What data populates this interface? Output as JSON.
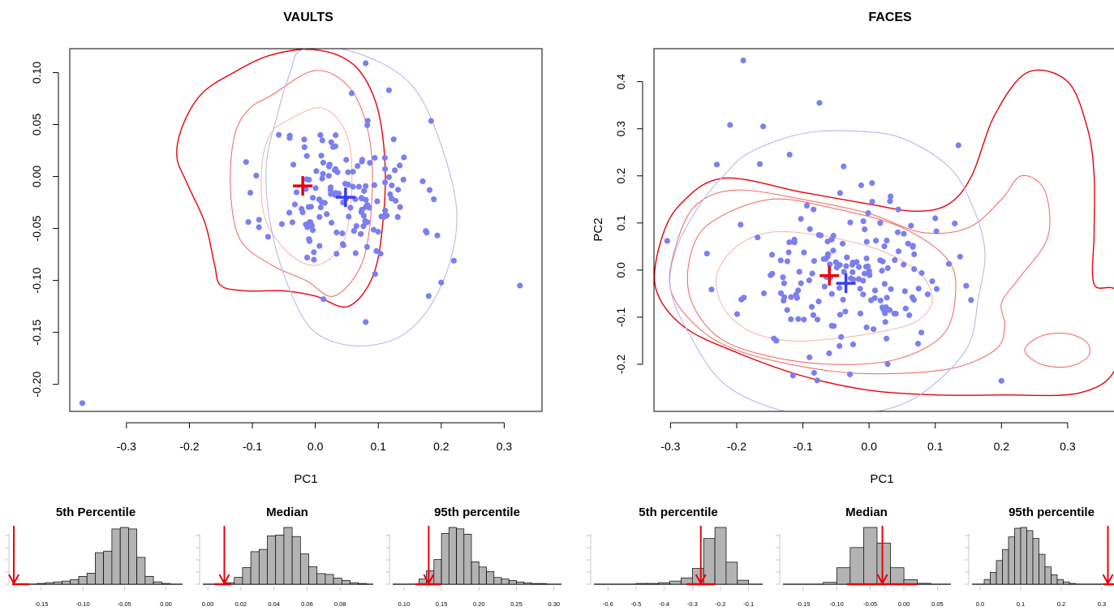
{
  "colors": {
    "points": "#7b7ff0",
    "red": "#e8000b",
    "red_light": "#f0726c",
    "red_faint": "#f7b6b0",
    "lilac": "#b8b8ee",
    "blue_cross": "#3b3bf0",
    "hist_fill": "#b3b3b3"
  },
  "chart_data": [
    {
      "type": "scatter",
      "title": "VAULTS",
      "xlabel": "PC1",
      "ylabel": "",
      "xlim": [
        -0.39,
        0.36
      ],
      "ylim": [
        -0.226,
        0.123
      ],
      "xticks": [
        "-0.3",
        "-0.2",
        "-0.1",
        "0.0",
        "0.1",
        "0.2",
        "0.3"
      ],
      "xtick_values": [
        -0.3,
        -0.2,
        -0.1,
        0.0,
        0.1,
        0.2,
        0.3
      ],
      "yticks": [
        "-0.20",
        "-0.15",
        "-0.10",
        "-0.05",
        "0.00",
        "0.05",
        "0.10"
      ],
      "ytick_values": [
        -0.2,
        -0.15,
        -0.1,
        -0.05,
        0.0,
        0.05,
        0.1
      ],
      "grid": false,
      "legend": "none",
      "outliers": [
        [
          -0.37,
          -0.218
        ],
        [
          0.325,
          -0.105
        ],
        [
          0.08,
          -0.14
        ],
        [
          0.08,
          0.109
        ],
        [
          0.22,
          -0.081
        ],
        [
          0.2,
          -0.102
        ],
        [
          0.18,
          -0.115
        ],
        [
          0.117,
          0.083
        ],
        [
          0.013,
          -0.118
        ]
      ],
      "cluster": {
        "center": [
          0.045,
          -0.018
        ],
        "spread": [
          0.06,
          0.036
        ],
        "n": 150,
        "seed": 11,
        "xrange": [
          -0.11,
          0.24
        ],
        "yrange": [
          -0.13,
          0.1
        ]
      },
      "red_cross": [
        -0.02,
        -0.009
      ],
      "blue_cross": [
        0.048,
        -0.02
      ],
      "contours": [
        {
          "color": "red",
          "points": [
            [
              -0.13,
              0.1
            ],
            [
              -0.07,
              0.117
            ],
            [
              0.0,
              0.122
            ],
            [
              0.06,
              0.108
            ],
            [
              0.095,
              0.073
            ],
            [
              0.11,
              0.02
            ],
            [
              0.108,
              -0.04
            ],
            [
              0.092,
              -0.095
            ],
            [
              0.052,
              -0.125
            ],
            [
              0.0,
              -0.115
            ],
            [
              -0.05,
              -0.11
            ],
            [
              -0.11,
              -0.11
            ],
            [
              -0.15,
              -0.105
            ],
            [
              -0.16,
              -0.085
            ],
            [
              -0.175,
              -0.045
            ],
            [
              -0.205,
              -0.005
            ],
            [
              -0.22,
              0.02
            ],
            [
              -0.21,
              0.05
            ],
            [
              -0.18,
              0.08
            ]
          ]
        },
        {
          "color": "red_light",
          "points": [
            [
              -0.07,
              0.078
            ],
            [
              0.0,
              0.102
            ],
            [
              0.055,
              0.085
            ],
            [
              0.085,
              0.04
            ],
            [
              0.09,
              -0.02
            ],
            [
              0.075,
              -0.082
            ],
            [
              0.03,
              -0.115
            ],
            [
              -0.015,
              -0.1
            ],
            [
              -0.07,
              -0.085
            ],
            [
              -0.12,
              -0.06
            ],
            [
              -0.135,
              -0.01
            ],
            [
              -0.128,
              0.04
            ],
            [
              -0.105,
              0.065
            ]
          ]
        },
        {
          "color": "red_faint",
          "points": [
            [
              -0.05,
              0.052
            ],
            [
              0.01,
              0.066
            ],
            [
              0.05,
              0.04
            ],
            [
              0.058,
              -0.01
            ],
            [
              0.045,
              -0.062
            ],
            [
              0.005,
              -0.085
            ],
            [
              -0.04,
              -0.075
            ],
            [
              -0.08,
              -0.04
            ],
            [
              -0.085,
              0.01
            ],
            [
              -0.072,
              0.04
            ]
          ]
        },
        {
          "color": "lilac",
          "points": [
            [
              -0.02,
              0.122
            ],
            [
              0.06,
              0.12
            ],
            [
              0.15,
              0.09
            ],
            [
              0.2,
              0.03
            ],
            [
              0.225,
              -0.04
            ],
            [
              0.2,
              -0.105
            ],
            [
              0.145,
              -0.15
            ],
            [
              0.07,
              -0.163
            ],
            [
              0.0,
              -0.15
            ],
            [
              -0.04,
              -0.11
            ],
            [
              -0.07,
              -0.05
            ],
            [
              -0.078,
              0.01
            ],
            [
              -0.06,
              0.06
            ],
            [
              -0.04,
              0.1
            ]
          ]
        }
      ]
    },
    {
      "type": "scatter",
      "title": "FACES",
      "xlabel": "PC1",
      "ylabel": "PC2",
      "xlim": [
        -0.325,
        0.37
      ],
      "ylim": [
        -0.3,
        0.47
      ],
      "xticks": [
        "-0.3",
        "-0.2",
        "-0.1",
        "0.0",
        "0.1",
        "0.2",
        "0.3"
      ],
      "xtick_values": [
        -0.3,
        -0.2,
        -0.1,
        0.0,
        0.1,
        0.2,
        0.3
      ],
      "yticks": [
        "-0.2",
        "-0.1",
        "0.0",
        "0.1",
        "0.2",
        "0.3",
        "0.4"
      ],
      "ytick_values": [
        -0.2,
        -0.1,
        0.0,
        0.1,
        0.2,
        0.3,
        0.4
      ],
      "grid": false,
      "legend": "none",
      "outliers": [
        [
          -0.19,
          0.445
        ],
        [
          -0.075,
          0.355
        ],
        [
          -0.21,
          0.308
        ],
        [
          -0.16,
          0.305
        ],
        [
          -0.23,
          0.224
        ],
        [
          -0.305,
          0.062
        ],
        [
          -0.245,
          0.035
        ],
        [
          0.135,
          0.265
        ],
        [
          0.2,
          -0.235
        ],
        [
          -0.14,
          -0.15
        ],
        [
          -0.12,
          0.245
        ],
        [
          -0.165,
          0.225
        ],
        [
          0.1,
          0.11
        ]
      ],
      "cluster": {
        "center": [
          -0.035,
          -0.02
        ],
        "spread": [
          0.075,
          0.08
        ],
        "n": 170,
        "seed": 23,
        "xrange": [
          -0.26,
          0.16
        ],
        "yrange": [
          -0.27,
          0.22
        ]
      },
      "red_cross": [
        -0.06,
        -0.012
      ],
      "blue_cross": [
        -0.035,
        -0.028
      ],
      "contours": [
        {
          "color": "red",
          "points": [
            [
              -0.22,
              0.195
            ],
            [
              -0.1,
              0.165
            ],
            [
              0.0,
              0.14
            ],
            [
              0.07,
              0.125
            ],
            [
              0.12,
              0.14
            ],
            [
              0.155,
              0.2
            ],
            [
              0.19,
              0.33
            ],
            [
              0.24,
              0.42
            ],
            [
              0.3,
              0.4
            ],
            [
              0.33,
              0.3
            ],
            [
              0.34,
              0.2
            ],
            [
              0.34,
              0.08
            ],
            [
              0.34,
              -0.03
            ],
            [
              0.375,
              -0.05
            ],
            [
              0.375,
              -0.2
            ],
            [
              0.32,
              -0.26
            ],
            [
              0.2,
              -0.265
            ],
            [
              0.1,
              -0.265
            ],
            [
              0.0,
              -0.255
            ],
            [
              -0.1,
              -0.225
            ],
            [
              -0.2,
              -0.175
            ],
            [
              -0.28,
              -0.12
            ],
            [
              -0.322,
              -0.04
            ],
            [
              -0.315,
              0.06
            ],
            [
              -0.285,
              0.14
            ]
          ]
        },
        {
          "color": "red_light",
          "points": [
            [
              -0.2,
              0.17
            ],
            [
              -0.1,
              0.15
            ],
            [
              0.0,
              0.12
            ],
            [
              0.08,
              0.08
            ],
            [
              0.15,
              0.09
            ],
            [
              0.2,
              0.15
            ],
            [
              0.23,
              0.2
            ],
            [
              0.265,
              0.17
            ],
            [
              0.27,
              0.07
            ],
            [
              0.225,
              -0.02
            ],
            [
              0.2,
              -0.07
            ],
            [
              0.205,
              -0.12
            ],
            [
              0.19,
              -0.17
            ],
            [
              0.12,
              -0.21
            ],
            [
              0.0,
              -0.22
            ],
            [
              -0.1,
              -0.205
            ],
            [
              -0.2,
              -0.17
            ],
            [
              -0.26,
              -0.12
            ],
            [
              -0.3,
              -0.04
            ],
            [
              -0.29,
              0.06
            ],
            [
              -0.26,
              0.14
            ]
          ]
        },
        {
          "color": "red_light",
          "points": [
            [
              -0.15,
              0.15
            ],
            [
              -0.05,
              0.13
            ],
            [
              0.05,
              0.09
            ],
            [
              0.12,
              0.02
            ],
            [
              0.13,
              -0.06
            ],
            [
              0.11,
              -0.14
            ],
            [
              0.04,
              -0.19
            ],
            [
              -0.06,
              -0.2
            ],
            [
              -0.16,
              -0.18
            ],
            [
              -0.23,
              -0.14
            ],
            [
              -0.27,
              -0.06
            ],
            [
              -0.27,
              0.03
            ],
            [
              -0.24,
              0.1
            ]
          ]
        },
        {
          "color": "red_light",
          "points": [
            [
              0.26,
              -0.14
            ],
            [
              0.3,
              -0.135
            ],
            [
              0.33,
              -0.155
            ],
            [
              0.33,
              -0.185
            ],
            [
              0.3,
              -0.205
            ],
            [
              0.26,
              -0.2
            ],
            [
              0.235,
              -0.17
            ]
          ]
        },
        {
          "color": "red_faint",
          "points": [
            [
              -0.15,
              0.08
            ],
            [
              -0.08,
              0.075
            ],
            [
              0.0,
              0.05
            ],
            [
              0.05,
              0.02
            ],
            [
              0.085,
              -0.02
            ],
            [
              0.095,
              -0.07
            ],
            [
              0.07,
              -0.11
            ],
            [
              0.02,
              -0.13
            ],
            [
              -0.05,
              -0.145
            ],
            [
              -0.12,
              -0.15
            ],
            [
              -0.18,
              -0.13
            ],
            [
              -0.22,
              -0.08
            ],
            [
              -0.23,
              -0.01
            ],
            [
              -0.2,
              0.05
            ]
          ]
        },
        {
          "color": "lilac",
          "points": [
            [
              -0.18,
              0.25
            ],
            [
              -0.1,
              0.29
            ],
            [
              -0.02,
              0.295
            ],
            [
              0.05,
              0.28
            ],
            [
              0.12,
              0.22
            ],
            [
              0.155,
              0.14
            ],
            [
              0.175,
              0.04
            ],
            [
              0.165,
              -0.06
            ],
            [
              0.15,
              -0.16
            ],
            [
              0.1,
              -0.24
            ],
            [
              0.04,
              -0.29
            ],
            [
              -0.05,
              -0.31
            ],
            [
              -0.14,
              -0.295
            ],
            [
              -0.22,
              -0.24
            ],
            [
              -0.27,
              -0.14
            ],
            [
              -0.3,
              -0.04
            ],
            [
              -0.29,
              0.05
            ],
            [
              -0.255,
              0.14
            ],
            [
              -0.22,
              0.2
            ]
          ]
        }
      ]
    }
  ],
  "histograms": [
    {
      "title": "5th Percentile",
      "xticks": [
        "-0.15",
        "-0.10",
        "-0.05",
        "0.00"
      ],
      "xtick_values": [
        -0.15,
        -0.1,
        -0.05,
        0.0
      ],
      "xlim": [
        -0.185,
        0.02
      ],
      "bin_start": -0.155,
      "bin_width": 0.01,
      "counts": [
        1,
        2,
        3,
        4,
        6,
        10,
        14,
        40,
        42,
        70,
        72,
        70,
        34,
        10,
        3,
        1
      ],
      "arrow_x": -0.183,
      "bar_range": [
        -0.185,
        -0.165
      ]
    },
    {
      "title": "Median",
      "xticks": [
        "0.00",
        "0.02",
        "0.04",
        "0.06",
        "0.08"
      ],
      "xtick_values": [
        0.0,
        0.02,
        0.04,
        0.06,
        0.08
      ],
      "xlim": [
        -0.003,
        0.1
      ],
      "bin_start": 0.011,
      "bin_width": 0.005,
      "counts": [
        2,
        9,
        22,
        43,
        46,
        64,
        65,
        75,
        63,
        40,
        23,
        14,
        13,
        8,
        5,
        2,
        1
      ],
      "arrow_x": 0.01,
      "bar_range": [
        0.004,
        0.014
      ]
    },
    {
      "title": "95th percentile",
      "xticks": [
        "0.10",
        "0.15",
        "0.20",
        "0.25",
        "0.30"
      ],
      "xtick_values": [
        0.1,
        0.15,
        0.2,
        0.25,
        0.3
      ],
      "xlim": [
        0.085,
        0.31
      ],
      "bin_start": 0.12,
      "bin_width": 0.01,
      "counts": [
        7,
        18,
        33,
        68,
        76,
        74,
        67,
        30,
        23,
        17,
        9,
        7,
        5,
        3,
        2,
        1,
        1
      ],
      "arrow_x": 0.133,
      "bar_range": [
        0.115,
        0.15
      ]
    },
    {
      "title": "5th percentile",
      "xticks": [
        "-0.6",
        "-0.5",
        "-0.4",
        "-0.3",
        "-0.2",
        "-0.1"
      ],
      "xtick_values": [
        -0.6,
        -0.5,
        -0.4,
        -0.3,
        -0.2,
        -0.1
      ],
      "xlim": [
        -0.65,
        -0.05
      ],
      "bin_start": -0.5,
      "bin_width": 0.04,
      "counts": [
        1,
        1,
        2,
        4,
        8,
        20,
        58,
        72,
        28,
        5
      ],
      "arrow_x": -0.27,
      "bar_range": [
        -0.32,
        -0.22
      ]
    },
    {
      "title": "Median",
      "xticks": [
        "-0.15",
        "-0.10",
        "-0.05",
        "0.00",
        "0.05"
      ],
      "xtick_values": [
        -0.15,
        -0.1,
        -0.05,
        0.0,
        0.05
      ],
      "xlim": [
        -0.18,
        0.07
      ],
      "bin_start": -0.12,
      "bin_width": 0.02,
      "counts": [
        2,
        18,
        40,
        62,
        45,
        18,
        5,
        1
      ],
      "arrow_x": -0.032,
      "bar_range": [
        -0.085,
        0.02
      ]
    },
    {
      "title": "95th percentile",
      "xticks": [
        "0.0",
        "0.1",
        "0.2",
        "0.3"
      ],
      "xtick_values": [
        0.0,
        0.1,
        0.2,
        0.3
      ],
      "xlim": [
        -0.02,
        0.33
      ],
      "bin_start": 0.01,
      "bin_width": 0.015,
      "counts": [
        6,
        15,
        30,
        44,
        60,
        71,
        72,
        68,
        58,
        38,
        22,
        12,
        6,
        3,
        1
      ],
      "arrow_x": 0.315,
      "bar_range": [
        0.305,
        0.33
      ]
    }
  ]
}
